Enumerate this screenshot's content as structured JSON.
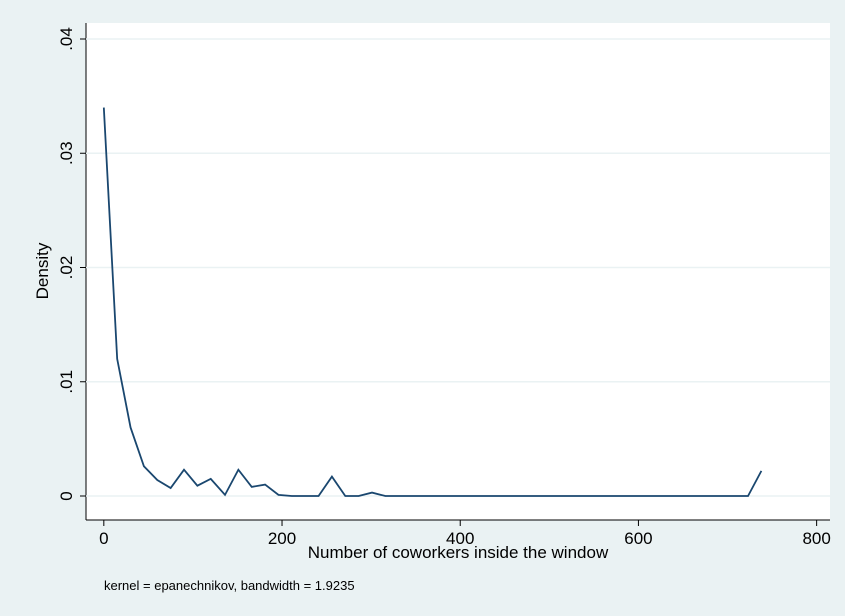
{
  "chart_data": {
    "type": "line",
    "x_label": "Number of coworkers inside the window",
    "y_label": "Density",
    "note": "kernel = epanechnikov, bandwidth = 1.9235",
    "x": [
      0,
      15,
      30,
      45,
      60,
      75,
      90,
      105,
      120,
      136,
      151,
      166,
      181,
      196,
      211,
      226,
      241,
      256,
      271,
      286,
      301,
      316,
      331,
      346,
      361,
      376,
      391,
      406,
      422,
      437,
      452,
      467,
      482,
      497,
      512,
      527,
      542,
      557,
      572,
      587,
      602,
      617,
      632,
      648,
      663,
      678,
      693,
      708,
      723,
      738
    ],
    "series": [
      {
        "color": "#1a476f",
        "values": [
          0.034,
          0.012,
          0.006,
          0.0026,
          0.0014,
          0.0007,
          0.0023,
          0.0009,
          0.0015,
          0.0001,
          0.0023,
          0.0008,
          0.001,
          0.0001,
          0,
          0,
          0,
          0.0017,
          0,
          0,
          0.0003,
          0,
          0,
          0,
          0,
          0,
          0,
          0,
          0,
          0,
          0,
          0,
          0,
          0,
          0,
          0,
          0,
          0,
          0,
          0,
          0,
          0,
          0,
          0,
          0,
          0,
          0,
          0,
          0,
          0.0022
        ]
      }
    ],
    "xlim": [
      -20,
      815
    ],
    "ylim": [
      -0.0021,
      0.0414
    ],
    "xticks": [
      0,
      200,
      400,
      600,
      800
    ],
    "yticks": [
      0,
      {
        "value": 0.01,
        "label": ".01"
      },
      {
        "value": 0.02,
        "label": ".02"
      },
      {
        "value": 0.03,
        "label": ".03"
      },
      {
        "value": 0.04,
        "label": ".04"
      }
    ],
    "grid": true
  }
}
